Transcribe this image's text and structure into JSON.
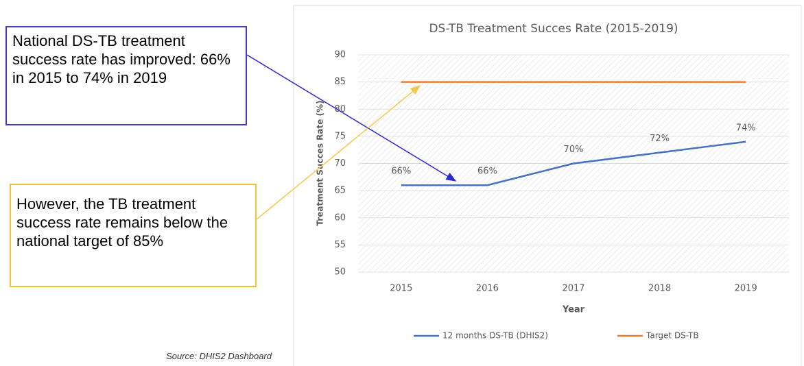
{
  "chart_data": {
    "type": "line",
    "title": "DS-TB Treatment Succes Rate (2015-2019)",
    "x_label": "Year",
    "y_label": "Treatment Succes Rate (%)",
    "categories": [
      "2015",
      "2016",
      "2017",
      "2018",
      "2019"
    ],
    "series": [
      {
        "name": "12 months DS-TB (DHIS2)",
        "color": "#4472c4",
        "values": [
          66,
          66,
          70,
          72,
          74
        ],
        "value_labels": [
          "66%",
          "66%",
          "70%",
          "72%",
          "74%"
        ]
      },
      {
        "name": "Target DS-TB",
        "color": "#ed7d31",
        "values": [
          85,
          85,
          85,
          85,
          85
        ]
      }
    ],
    "ylim": [
      50,
      90
    ],
    "yticks": [
      50,
      55,
      60,
      65,
      70,
      75,
      80,
      85,
      90
    ],
    "grid": true,
    "legend": "bottom"
  },
  "annotations": [
    {
      "text": "National DS-TB treatment success rate has improved: 66% in 2015 to 74% in 2019"
    },
    {
      "text": "However, the TB treatment success rate remains below the national target of 85%"
    }
  ],
  "source": "Source: DHIS2 Dashboard"
}
